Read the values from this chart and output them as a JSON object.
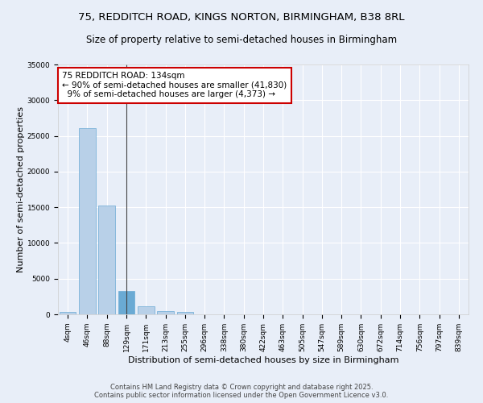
{
  "title_line1": "75, REDDITCH ROAD, KINGS NORTON, BIRMINGHAM, B38 8RL",
  "title_line2": "Size of property relative to semi-detached houses in Birmingham",
  "xlabel": "Distribution of semi-detached houses by size in Birmingham",
  "ylabel": "Number of semi-detached properties",
  "categories": [
    "4sqm",
    "46sqm",
    "88sqm",
    "129sqm",
    "171sqm",
    "213sqm",
    "255sqm",
    "296sqm",
    "338sqm",
    "380sqm",
    "422sqm",
    "463sqm",
    "505sqm",
    "547sqm",
    "589sqm",
    "630sqm",
    "672sqm",
    "714sqm",
    "756sqm",
    "797sqm",
    "839sqm"
  ],
  "values": [
    350,
    26100,
    15200,
    3300,
    1100,
    500,
    300,
    50,
    0,
    0,
    0,
    0,
    0,
    0,
    0,
    0,
    0,
    0,
    0,
    0,
    0
  ],
  "bar_color": "#b8d0e8",
  "bar_edge_color": "#6aaad4",
  "highlight_bar_index": 3,
  "highlight_bar_color": "#6aaad4",
  "annotation_text": "75 REDDITCH ROAD: 134sqm\n← 90% of semi-detached houses are smaller (41,830)\n  9% of semi-detached houses are larger (4,373) →",
  "annotation_box_color": "#ffffff",
  "annotation_box_edge": "#cc0000",
  "ylim": [
    0,
    35000
  ],
  "yticks": [
    0,
    5000,
    10000,
    15000,
    20000,
    25000,
    30000,
    35000
  ],
  "background_color": "#e8eef8",
  "grid_color": "#ffffff",
  "footer_line1": "Contains HM Land Registry data © Crown copyright and database right 2025.",
  "footer_line2": "Contains public sector information licensed under the Open Government Licence v3.0.",
  "title_fontsize": 9.5,
  "subtitle_fontsize": 8.5,
  "axis_label_fontsize": 8,
  "tick_fontsize": 6.5,
  "annotation_fontsize": 7.5,
  "footer_fontsize": 6
}
